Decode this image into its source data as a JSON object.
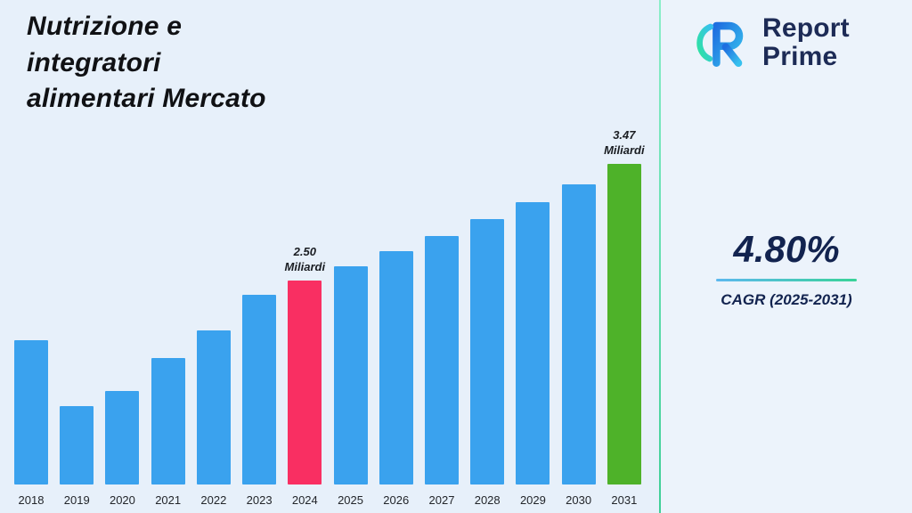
{
  "title": "Nutrizione e\nintegratori\nalimentari Mercato",
  "brand": {
    "line1": "Report",
    "line2": "Prime",
    "logo_icon": "reportprime-logo"
  },
  "stats": {
    "cagr_value": "4.80%",
    "cagr_label": "CAGR (2025-2031)"
  },
  "chart_data": {
    "type": "bar",
    "title": "Nutrizione e integratori alimentari Mercato",
    "unit": "Miliardi",
    "categories": [
      "2018",
      "2019",
      "2020",
      "2021",
      "2022",
      "2023",
      "2024",
      "2025",
      "2026",
      "2027",
      "2028",
      "2029",
      "2030",
      "2031"
    ],
    "values": [
      2.0,
      1.45,
      1.58,
      1.85,
      2.08,
      2.38,
      2.5,
      2.62,
      2.74,
      2.87,
      3.01,
      3.15,
      3.3,
      3.47
    ],
    "bar_color": "#3aa2ee",
    "highlight_colors": {
      "2024": "#f92f62",
      "2031": "#4eb229"
    },
    "annotations": [
      {
        "category": "2024",
        "text": "2.50\nMiliardi"
      },
      {
        "category": "2031",
        "text": "3.47\nMiliardi"
      }
    ],
    "ylim": [
      0.8,
      3.47
    ],
    "grid": false,
    "legend": false,
    "xlabel": "",
    "ylabel": ""
  }
}
